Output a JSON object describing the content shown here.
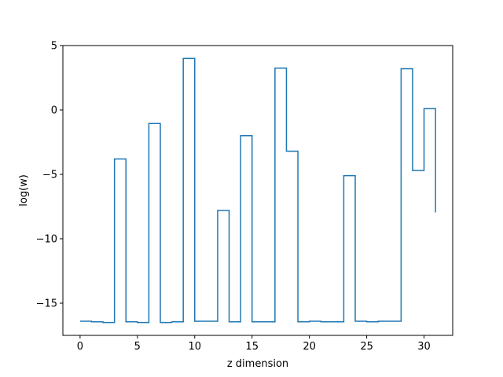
{
  "chart_data": {
    "type": "line",
    "drawstyle": "steps-post",
    "title": "",
    "xlabel": "z dimension",
    "ylabel": "log(w)",
    "xlim": [
      -1.5,
      32.5
    ],
    "ylim": [
      -17.5,
      5
    ],
    "xticks": [
      0,
      5,
      10,
      15,
      20,
      25,
      30
    ],
    "yticks": [
      5,
      0,
      -5,
      -10,
      -15
    ],
    "x": [
      0,
      1,
      2,
      3,
      4,
      5,
      6,
      7,
      8,
      9,
      10,
      11,
      12,
      13,
      14,
      15,
      16,
      17,
      18,
      19,
      20,
      21,
      22,
      23,
      24,
      25,
      26,
      27,
      28,
      29,
      30,
      31
    ],
    "series": [
      {
        "color": "#1f77b4",
        "values": [
          -16.4,
          -16.45,
          -16.5,
          -3.8,
          -16.45,
          -16.5,
          -1.05,
          -16.5,
          -16.45,
          4.0,
          -16.4,
          -16.4,
          -7.8,
          -16.45,
          -2.0,
          -16.45,
          -16.45,
          3.25,
          -3.2,
          -16.45,
          -16.4,
          -16.45,
          -16.45,
          -5.1,
          -16.4,
          -16.45,
          -16.4,
          -16.4,
          3.2,
          -4.7,
          0.1,
          -7.95
        ]
      }
    ],
    "grid": false,
    "legend": "none"
  }
}
